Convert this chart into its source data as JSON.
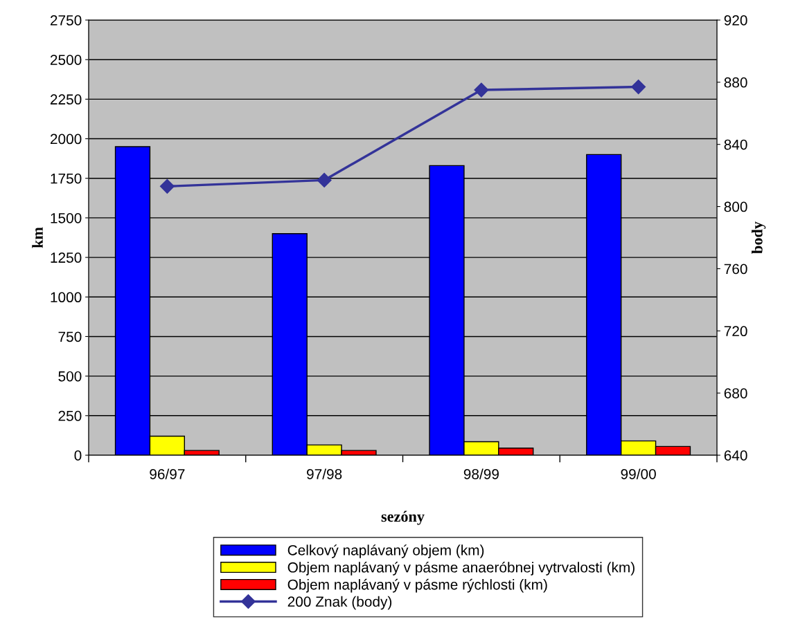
{
  "chart_data": {
    "type": "bar",
    "xlabel": "sezóny",
    "ylabel": "km",
    "y2label": "body",
    "categories": [
      "96/97",
      "97/98",
      "98/99",
      "99/00"
    ],
    "series": [
      {
        "name": "Celkový naplávaný objem (km)",
        "color": "#0000ff",
        "values": [
          1950,
          1400,
          1830,
          1900
        ]
      },
      {
        "name": "Objem naplávaný v pásme anaeróbnej vytrvalosti (km)",
        "color": "#ffff00",
        "values": [
          120,
          65,
          85,
          90
        ]
      },
      {
        "name": "Objem naplávaný v pásme rýchlosti (km)",
        "color": "#ff0000",
        "values": [
          30,
          30,
          45,
          55
        ]
      },
      {
        "name": "200 Znak (body)",
        "color": "#333399",
        "type": "line",
        "axis": "y2",
        "marker": "diamond",
        "values": [
          813,
          817,
          875,
          877
        ]
      }
    ],
    "ylim": [
      0,
      2750
    ],
    "yticks": [
      0,
      250,
      500,
      750,
      1000,
      1250,
      1500,
      1750,
      2000,
      2250,
      2500,
      2750
    ],
    "y2lim": [
      640,
      920
    ],
    "y2ticks": [
      640,
      680,
      720,
      760,
      800,
      840,
      880,
      920
    ],
    "grid": "y",
    "legend": "bottom"
  }
}
